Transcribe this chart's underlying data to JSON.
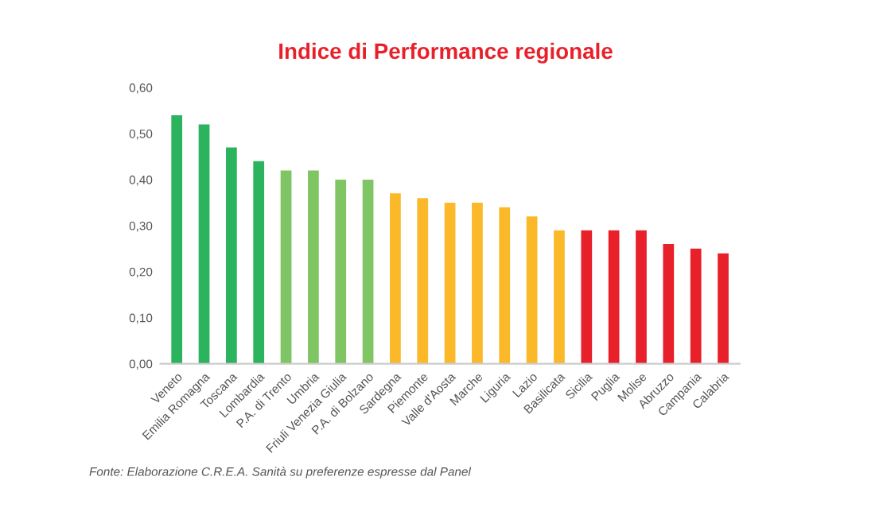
{
  "chart_data": {
    "type": "bar",
    "title": "Indice di Performance regionale",
    "categories": [
      "Veneto",
      "Emilia Romagna",
      "Toscana",
      "Lombardia",
      "P.A. di Trento",
      "Umbria",
      "Friuli Venezia Giulia",
      "P.A. di Bolzano",
      "Sardegna",
      "Piemonte",
      "Valle d'Aosta",
      "Marche",
      "Liguria",
      "Lazio",
      "Basilicata",
      "Sicilia",
      "Puglia",
      "Molise",
      "Abruzzo",
      "Campania",
      "Calabria"
    ],
    "values": [
      0.54,
      0.52,
      0.47,
      0.44,
      0.42,
      0.42,
      0.4,
      0.4,
      0.37,
      0.36,
      0.35,
      0.35,
      0.34,
      0.32,
      0.29,
      0.29,
      0.29,
      0.29,
      0.26,
      0.25,
      0.24
    ],
    "colors": [
      "#2bb35e",
      "#2bb35e",
      "#2bb35e",
      "#2bb35e",
      "#80c563",
      "#80c563",
      "#80c563",
      "#80c563",
      "#fbb829",
      "#fbb829",
      "#fbb829",
      "#fbb829",
      "#fbb829",
      "#fbb829",
      "#fbb829",
      "#e8202a",
      "#e8202a",
      "#e8202a",
      "#e8202a",
      "#e8202a",
      "#e8202a"
    ],
    "ylim": [
      0,
      0.6
    ],
    "yticks": [
      {
        "value": 0,
        "label": "0,00"
      },
      {
        "value": 0.1,
        "label": "0,10"
      },
      {
        "value": 0.2,
        "label": "0,20"
      },
      {
        "value": 0.3,
        "label": "0,30"
      },
      {
        "value": 0.4,
        "label": "0,40"
      },
      {
        "value": 0.5,
        "label": "0,50"
      },
      {
        "value": 0.6,
        "label": "0,60"
      }
    ],
    "grid": false,
    "annotations": [
      "Fonte: Elaborazione C.R.E.A. Sanità su preferenze espresse dal Panel"
    ]
  }
}
